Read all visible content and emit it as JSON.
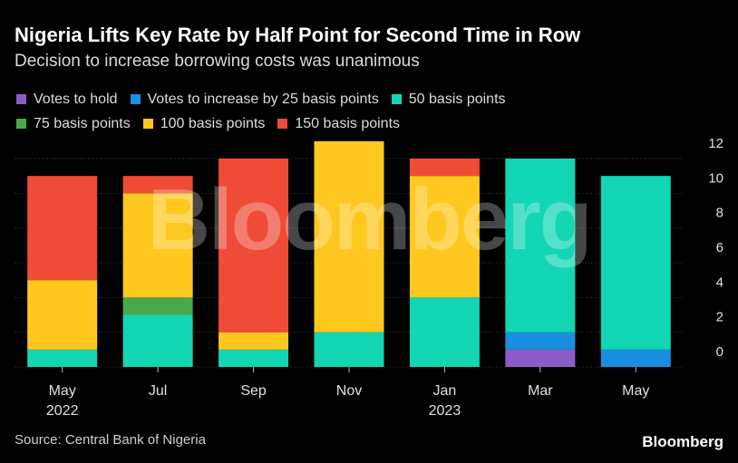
{
  "header": {
    "title": "Nigeria Lifts Key Rate by Half Point for Second Time in Row",
    "subtitle": "Decision to increase borrowing costs was unanimous"
  },
  "footer": {
    "source": "Source: Central Bank of Nigeria",
    "brand": "Bloomberg"
  },
  "watermark": "Bloomberg",
  "chart_data": {
    "type": "bar",
    "stacked": true,
    "categories": [
      "May 2022",
      "Jul",
      "Sep",
      "Nov",
      "Jan 2023",
      "Mar",
      "May"
    ],
    "category_labels": [
      [
        "May",
        "2022"
      ],
      [
        "Jul"
      ],
      [
        "Sep"
      ],
      [
        "Nov"
      ],
      [
        "Jan",
        "2023"
      ],
      [
        "Mar"
      ],
      [
        "May"
      ]
    ],
    "series": [
      {
        "name": "Votes to hold",
        "color": "#8a5cc7",
        "values": [
          0,
          0,
          0,
          0,
          0,
          1,
          0
        ]
      },
      {
        "name": "Votes to increase by 25 basis points",
        "color": "#1a8fe0",
        "values": [
          0,
          0,
          0,
          0,
          0,
          1,
          1
        ]
      },
      {
        "name": "50 basis points",
        "color": "#12d6b4",
        "values": [
          1,
          3,
          1,
          2,
          4,
          10,
          10
        ]
      },
      {
        "name": "75 basis points",
        "color": "#4aa84a",
        "values": [
          0,
          1,
          0,
          0,
          0,
          0,
          0
        ]
      },
      {
        "name": "100 basis points",
        "color": "#ffc81e",
        "values": [
          4,
          6,
          1,
          11,
          7,
          0,
          0
        ]
      },
      {
        "name": "150 basis points",
        "color": "#ef4b37",
        "values": [
          6,
          1,
          10,
          0,
          1,
          0,
          0
        ]
      }
    ],
    "legend_rows": [
      [
        0,
        1,
        2
      ],
      [
        3,
        4,
        5
      ]
    ],
    "ylim": [
      0,
      12
    ],
    "yticks": [
      0,
      2,
      4,
      6,
      8,
      10,
      12
    ],
    "y_axis_side": "right",
    "grid": true,
    "legend_placement": "top",
    "xlabel": "",
    "ylabel": ""
  }
}
